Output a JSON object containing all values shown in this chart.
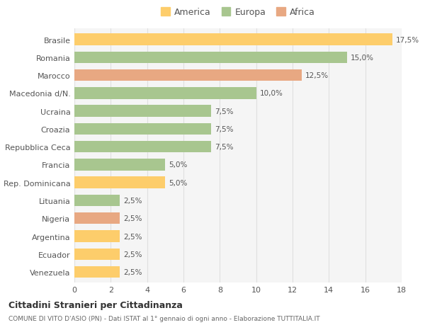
{
  "categories": [
    "Venezuela",
    "Ecuador",
    "Argentina",
    "Nigeria",
    "Lituania",
    "Rep. Dominicana",
    "Francia",
    "Repubblica Ceca",
    "Croazia",
    "Ucraina",
    "Macedonia d/N.",
    "Marocco",
    "Romania",
    "Brasile"
  ],
  "values": [
    2.5,
    2.5,
    2.5,
    2.5,
    2.5,
    5.0,
    5.0,
    7.5,
    7.5,
    7.5,
    10.0,
    12.5,
    15.0,
    17.5
  ],
  "colors": [
    "#FDCD6B",
    "#FDCD6B",
    "#FDCD6B",
    "#E8A882",
    "#A8C68F",
    "#FDCD6B",
    "#A8C68F",
    "#A8C68F",
    "#A8C68F",
    "#A8C68F",
    "#A8C68F",
    "#E8A882",
    "#A8C68F",
    "#FDCD6B"
  ],
  "labels": [
    "2,5%",
    "2,5%",
    "2,5%",
    "2,5%",
    "2,5%",
    "5,0%",
    "5,0%",
    "7,5%",
    "7,5%",
    "7,5%",
    "10,0%",
    "12,5%",
    "15,0%",
    "17,5%"
  ],
  "legend_labels": [
    "America",
    "Europa",
    "Africa"
  ],
  "legend_colors": [
    "#FDCD6B",
    "#A8C68F",
    "#E8A882"
  ],
  "title": "Cittadini Stranieri per Cittadinanza",
  "subtitle": "COMUNE DI VITO D'ASIO (PN) - Dati ISTAT al 1° gennaio di ogni anno - Elaborazione TUTTITALIA.IT",
  "xlim": [
    0,
    18
  ],
  "xticks": [
    0,
    2,
    4,
    6,
    8,
    10,
    12,
    14,
    16,
    18
  ],
  "background_color": "#ffffff",
  "bar_background": "#f5f5f5",
  "grid_color": "#e0e0e0"
}
